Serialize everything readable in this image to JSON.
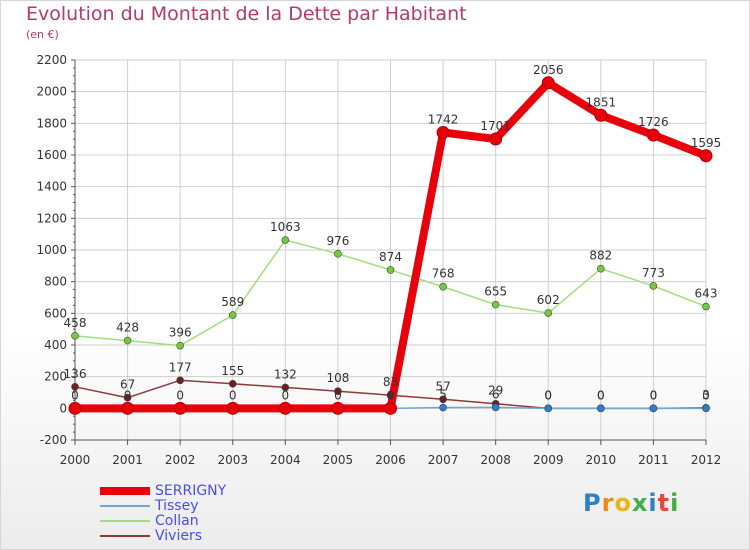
{
  "title": "Evolution du Montant de la Dette par Habitant",
  "unit": "(en €)",
  "logo": "Proxiti",
  "colors": {
    "title": "#b03a6a",
    "grid": "#cfcfcf",
    "axis": "#555555",
    "legend_text": "#4a4cf0"
  },
  "chart_data": {
    "type": "line",
    "x": [
      "2000",
      "2001",
      "2002",
      "2003",
      "2004",
      "2005",
      "2006",
      "2007",
      "2008",
      "2009",
      "2010",
      "2011",
      "2012"
    ],
    "ylim": [
      -200,
      2200
    ],
    "yticks": [
      -200,
      0,
      200,
      400,
      600,
      800,
      1000,
      1200,
      1400,
      1600,
      1800,
      2000,
      2200
    ],
    "grid": true,
    "legend_position": "bottom-left",
    "series": [
      {
        "name": "SERRIGNY",
        "color": "#e8000b",
        "marker": "#e8000b",
        "width": 8,
        "labelled": true,
        "values": [
          0,
          0,
          0,
          0,
          0,
          0,
          0,
          1742,
          1701,
          2056,
          1851,
          1726,
          1595
        ],
        "labels": [
          "",
          "",
          "",
          "",
          "",
          "",
          "",
          "1742",
          "1701",
          "2056",
          "1851",
          "1726",
          "1595"
        ]
      },
      {
        "name": "Tissey",
        "color": "#6fa6d6",
        "marker": "#2a7fd4",
        "width": 1.5,
        "labelled": true,
        "values": [
          0,
          0,
          0,
          0,
          0,
          0,
          0,
          5,
          6,
          0,
          0,
          0,
          0
        ],
        "labels": [
          "0",
          "0",
          "0",
          "0",
          "0",
          "0",
          "0",
          "5",
          "6",
          "0",
          "0",
          "0",
          "0"
        ]
      },
      {
        "name": "Collan",
        "color": "#a0e07a",
        "marker": "#74c93f",
        "width": 1.5,
        "labelled": true,
        "values": [
          458,
          428,
          396,
          589,
          1063,
          976,
          874,
          768,
          655,
          602,
          882,
          773,
          643
        ],
        "labels": [
          "458",
          "428",
          "396",
          "589",
          "1063",
          "976",
          "874",
          "768",
          "655",
          "602",
          "882",
          "773",
          "643"
        ]
      },
      {
        "name": "Viviers",
        "color": "#8b3a3a",
        "marker": "#6e1f1f",
        "width": 1.5,
        "labelled": true,
        "values": [
          136,
          67,
          177,
          155,
          132,
          108,
          83,
          57,
          29,
          0,
          0,
          0,
          3
        ],
        "labels": [
          "136",
          "67",
          "177",
          "155",
          "132",
          "108",
          "83",
          "57",
          "29",
          "0",
          "0",
          "0",
          "3"
        ]
      }
    ]
  }
}
